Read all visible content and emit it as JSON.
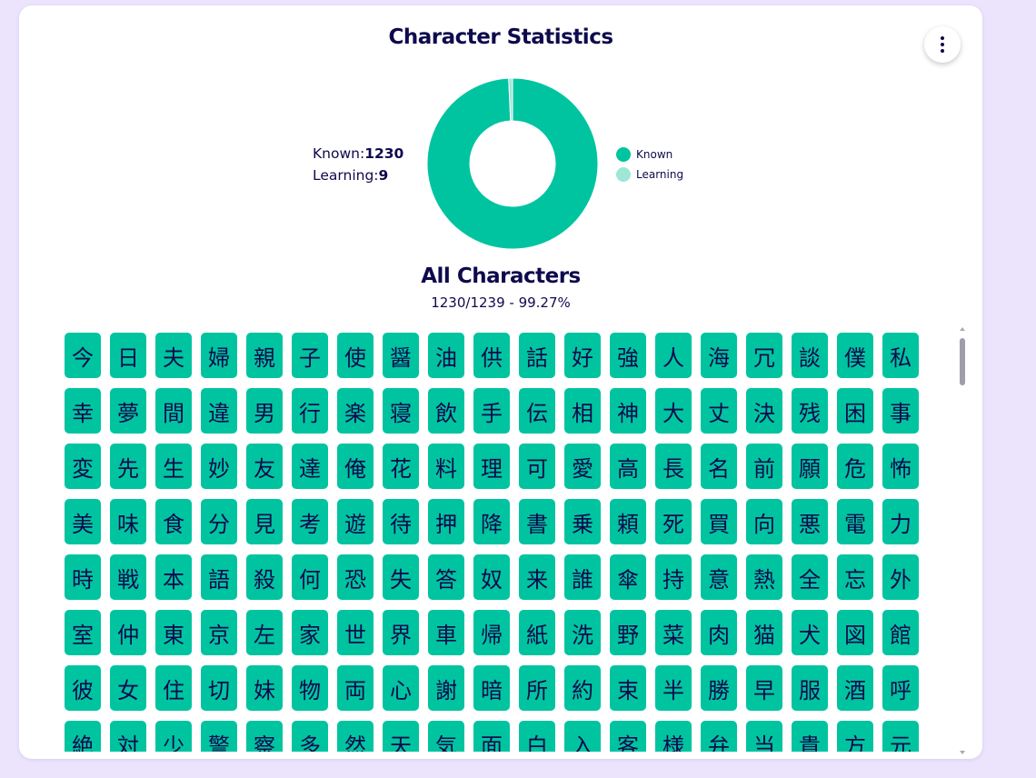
{
  "header": {
    "title": "Character Statistics",
    "menu_icon": "more-vertical-icon"
  },
  "stats": {
    "known_label": "Known:",
    "known_value": "1230",
    "learning_label": "Learning:",
    "learning_value": "9"
  },
  "chart_data": {
    "type": "pie",
    "title": "",
    "categories": [
      "Known",
      "Learning"
    ],
    "values": [
      1230,
      9
    ],
    "colors": [
      "#00c4a0",
      "#9ee6d6"
    ],
    "hole": true,
    "legend": "right"
  },
  "legend": {
    "items": [
      {
        "label": "Known",
        "color": "#00c4a0"
      },
      {
        "label": "Learning",
        "color": "#9ee6d6"
      }
    ]
  },
  "section": {
    "title": "All Characters",
    "progress": "1230/1239 - 99.27%"
  },
  "colors": {
    "tile": "#00c4a0",
    "text": "#0e0a4d",
    "background": "#ece4fd"
  },
  "characters": [
    "今",
    "日",
    "夫",
    "婦",
    "親",
    "子",
    "使",
    "醤",
    "油",
    "供",
    "話",
    "好",
    "強",
    "人",
    "海",
    "冗",
    "談",
    "僕",
    "私",
    "幸",
    "夢",
    "間",
    "違",
    "男",
    "行",
    "楽",
    "寝",
    "飲",
    "手",
    "伝",
    "相",
    "神",
    "大",
    "丈",
    "決",
    "残",
    "困",
    "事",
    "変",
    "先",
    "生",
    "妙",
    "友",
    "達",
    "俺",
    "花",
    "料",
    "理",
    "可",
    "愛",
    "高",
    "長",
    "名",
    "前",
    "願",
    "危",
    "怖",
    "美",
    "味",
    "食",
    "分",
    "見",
    "考",
    "遊",
    "待",
    "押",
    "降",
    "書",
    "乗",
    "頼",
    "死",
    "買",
    "向",
    "悪",
    "電",
    "力",
    "時",
    "戦",
    "本",
    "語",
    "殺",
    "何",
    "恐",
    "失",
    "答",
    "奴",
    "来",
    "誰",
    "傘",
    "持",
    "意",
    "熱",
    "全",
    "忘",
    "外",
    "室",
    "仲",
    "東",
    "京",
    "左",
    "家",
    "世",
    "界",
    "車",
    "帰",
    "紙",
    "洗",
    "野",
    "菜",
    "肉",
    "猫",
    "犬",
    "図",
    "館",
    "彼",
    "女",
    "住",
    "切",
    "妹",
    "物",
    "両",
    "心",
    "謝",
    "暗",
    "所",
    "約",
    "束",
    "半",
    "勝",
    "早",
    "服",
    "酒",
    "呼",
    "絶",
    "対",
    "少",
    "警",
    "察",
    "多",
    "然",
    "天",
    "気",
    "面",
    "白",
    "入",
    "客",
    "様",
    "弁",
    "当",
    "貴",
    "方",
    "元"
  ]
}
